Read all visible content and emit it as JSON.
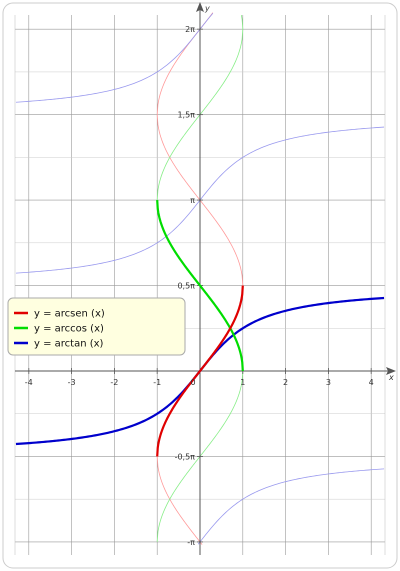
{
  "chart_data": {
    "type": "line",
    "xlabel": "x",
    "ylabel": "y",
    "xlim": [
      -4.3,
      4.3
    ],
    "ylim": [
      -3.2,
      6.6
    ],
    "x_ticks": [
      -4,
      -3,
      -2,
      -1,
      0,
      1,
      2,
      3,
      4
    ],
    "x_tick_labels": [
      "-4",
      "-3",
      "-2",
      "-1",
      "0",
      "1",
      "2",
      "3",
      "4"
    ],
    "y_ticks": [
      -3.14159,
      -1.5708,
      0,
      1.5708,
      3.14159,
      4.71239,
      6.28319
    ],
    "y_tick_labels": [
      "-π",
      "-0,5π",
      "0",
      "0,5π",
      "π",
      "1,5π",
      "2π"
    ],
    "grid": true,
    "legend_position": "left-center",
    "series": [
      {
        "name": "y = arcsen (x)",
        "color": "#e00000",
        "function": "arcsin",
        "domain": [
          -1,
          1
        ],
        "emphasis": "principal",
        "principal_points": [
          [
            -1,
            -1.571
          ],
          [
            -0.5,
            -0.524
          ],
          [
            0,
            0
          ],
          [
            0.5,
            0.524
          ],
          [
            1,
            1.571
          ]
        ],
        "faint_branches": "y = (-1)^n·arcsin(x) + nπ, other branches"
      },
      {
        "name": "y = arccos (x)",
        "color": "#00dd00",
        "function": "arccos",
        "domain": [
          -1,
          1
        ],
        "emphasis": "principal",
        "principal_points": [
          [
            -1,
            3.142
          ],
          [
            -0.5,
            2.094
          ],
          [
            0,
            1.571
          ],
          [
            0.5,
            1.047
          ],
          [
            1,
            0
          ]
        ],
        "faint_branches": "y = ±arccos(x) + 2nπ, other branches"
      },
      {
        "name": "y = arctan (x)",
        "color": "#0000cc",
        "function": "arctan",
        "domain": [
          -4.3,
          4.3
        ],
        "emphasis": "principal",
        "principal_points": [
          [
            -4,
            -1.326
          ],
          [
            -2,
            -1.107
          ],
          [
            -1,
            -0.785
          ],
          [
            0,
            0
          ],
          [
            1,
            0.785
          ],
          [
            2,
            1.107
          ],
          [
            4,
            1.326
          ]
        ],
        "faint_branches": "y = arctan(x) + nπ, other branches"
      }
    ]
  }
}
